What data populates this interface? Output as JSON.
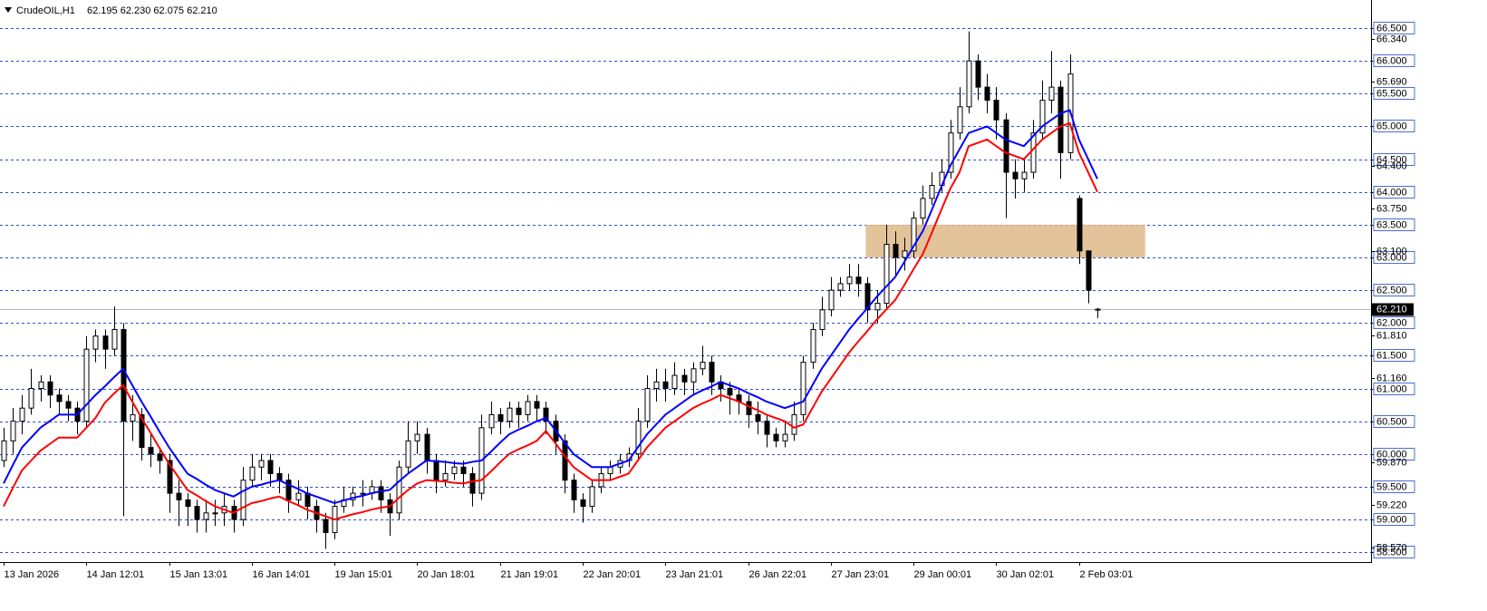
{
  "chart_data": {
    "type": "candlestick",
    "title": "CrudeOIL,H1",
    "quote": "62.195 62.230 62.075 62.210",
    "categories": [
      "13 Jan 2026",
      null,
      null,
      null,
      null,
      null,
      null,
      null,
      null,
      "14 Jan 12:01",
      null,
      null,
      null,
      null,
      null,
      null,
      null,
      null,
      "15 Jan 13:01",
      null,
      null,
      null,
      null,
      null,
      null,
      null,
      null,
      "16 Jan 14:01",
      null,
      null,
      null,
      null,
      null,
      null,
      null,
      null,
      "19 Jan 15:01",
      null,
      null,
      null,
      null,
      null,
      null,
      null,
      null,
      "20 Jan 18:01",
      null,
      null,
      null,
      null,
      null,
      null,
      null,
      null,
      "21 Jan 19:01",
      null,
      null,
      null,
      null,
      null,
      null,
      null,
      null,
      "22 Jan 20:01",
      null,
      null,
      null,
      null,
      null,
      null,
      null,
      null,
      "23 Jan 21:01",
      null,
      null,
      null,
      null,
      null,
      null,
      null,
      null,
      "26 Jan 22:01",
      null,
      null,
      null,
      null,
      null,
      null,
      null,
      null,
      "27 Jan 23:01",
      null,
      null,
      null,
      null,
      null,
      null,
      null,
      null,
      "29 Jan 00:01",
      null,
      null,
      null,
      null,
      null,
      null,
      null,
      null,
      "30 Jan 02:01",
      null,
      null,
      null,
      null,
      null,
      null,
      null,
      null,
      "2 Feb 03:01",
      null,
      null
    ],
    "open": [
      59.9,
      60.2,
      60.5,
      60.7,
      61.0,
      61.1,
      60.9,
      60.8,
      60.7,
      60.5,
      61.6,
      61.8,
      61.6,
      61.9,
      60.5,
      60.6,
      60.1,
      60.0,
      59.9,
      59.4,
      59.3,
      59.2,
      59.0,
      59.1,
      59.1,
      59.2,
      59.0,
      59.6,
      59.8,
      59.9,
      59.7,
      59.6,
      59.3,
      59.4,
      59.2,
      59.0,
      58.8,
      59.2,
      59.3,
      59.4,
      59.4,
      59.5,
      59.3,
      59.1,
      59.8,
      60.2,
      60.3,
      59.9,
      59.6,
      59.7,
      59.8,
      59.7,
      59.4,
      60.4,
      60.6,
      60.5,
      60.7,
      60.6,
      60.8,
      60.7,
      60.5,
      60.2,
      59.6,
      59.3,
      59.2,
      59.5,
      59.7,
      59.8,
      59.9,
      60.0,
      60.5,
      61.0,
      61.1,
      61.0,
      61.2,
      61.1,
      61.3,
      61.4,
      61.1,
      61.0,
      60.9,
      60.8,
      60.6,
      60.5,
      60.3,
      60.2,
      60.3,
      60.6,
      61.4,
      61.9,
      62.2,
      62.5,
      62.6,
      62.7,
      62.6,
      62.2,
      62.3,
      63.2,
      63.0,
      63.1,
      63.6,
      63.9,
      64.1,
      64.3,
      64.9,
      65.3,
      66.0,
      65.6,
      65.4,
      65.1,
      64.3,
      64.2,
      64.3,
      64.9,
      65.4,
      65.6,
      64.6,
      63.9,
      63.1,
      62.195
    ],
    "high": [
      60.4,
      60.7,
      60.9,
      61.3,
      61.2,
      61.2,
      61.0,
      60.9,
      60.8,
      61.8,
      61.9,
      61.9,
      62.25,
      62.0,
      60.9,
      60.7,
      60.3,
      60.1,
      60.0,
      59.6,
      59.4,
      59.3,
      59.3,
      59.3,
      59.4,
      59.3,
      59.8,
      60.0,
      60.0,
      60.0,
      59.8,
      59.7,
      59.6,
      59.5,
      59.3,
      59.1,
      59.3,
      59.5,
      59.5,
      59.6,
      59.6,
      59.6,
      59.4,
      59.9,
      60.5,
      60.5,
      60.4,
      60.0,
      59.9,
      59.9,
      59.9,
      59.8,
      60.6,
      60.8,
      60.7,
      60.8,
      60.8,
      60.9,
      60.9,
      60.8,
      60.6,
      60.3,
      59.7,
      59.4,
      59.6,
      59.8,
      59.9,
      60.0,
      60.1,
      60.7,
      61.2,
      61.3,
      61.3,
      61.4,
      61.3,
      61.4,
      61.65,
      61.5,
      61.2,
      61.1,
      61.0,
      60.9,
      60.8,
      60.6,
      60.4,
      60.5,
      60.8,
      61.5,
      62.0,
      62.4,
      62.7,
      62.7,
      62.9,
      62.9,
      62.7,
      62.5,
      63.5,
      63.4,
      63.3,
      63.7,
      64.1,
      64.3,
      64.5,
      65.1,
      65.6,
      66.45,
      66.1,
      65.8,
      65.6,
      65.2,
      64.5,
      64.5,
      65.1,
      65.7,
      66.15,
      65.7,
      66.1,
      63.95,
      63.1,
      62.23
    ],
    "low": [
      59.8,
      60.0,
      60.3,
      60.6,
      60.8,
      60.7,
      60.6,
      60.5,
      60.3,
      60.4,
      61.4,
      61.3,
      61.5,
      59.05,
      60.2,
      59.9,
      59.8,
      59.7,
      59.1,
      58.9,
      58.9,
      58.8,
      58.8,
      58.9,
      58.9,
      58.8,
      58.9,
      59.5,
      59.6,
      59.5,
      59.4,
      59.1,
      59.2,
      59.0,
      58.8,
      58.55,
      58.7,
      59.1,
      59.2,
      59.2,
      59.3,
      59.1,
      58.75,
      59.0,
      59.7,
      60.0,
      59.7,
      59.4,
      59.5,
      59.6,
      59.5,
      59.2,
      59.3,
      60.3,
      60.3,
      60.4,
      60.4,
      60.5,
      60.5,
      60.3,
      60.0,
      59.4,
      59.1,
      58.95,
      59.1,
      59.4,
      59.6,
      59.7,
      59.8,
      59.9,
      60.4,
      60.8,
      60.8,
      60.9,
      60.9,
      60.9,
      61.2,
      60.9,
      60.8,
      60.6,
      60.6,
      60.4,
      60.3,
      60.1,
      60.1,
      60.1,
      60.2,
      60.5,
      61.3,
      61.8,
      62.1,
      62.4,
      62.5,
      62.4,
      62.0,
      62.0,
      62.2,
      62.7,
      62.8,
      63.0,
      63.5,
      63.8,
      64.0,
      64.2,
      64.8,
      65.2,
      65.4,
      65.2,
      64.8,
      63.6,
      63.9,
      64.0,
      64.2,
      64.8,
      65.2,
      64.2,
      64.5,
      62.9,
      62.3,
      62.075
    ],
    "close": [
      60.2,
      60.5,
      60.7,
      61.0,
      61.1,
      60.9,
      60.8,
      60.7,
      60.5,
      61.6,
      61.8,
      61.6,
      61.9,
      60.5,
      60.6,
      60.1,
      60.0,
      59.9,
      59.4,
      59.3,
      59.2,
      59.0,
      59.1,
      59.1,
      59.2,
      59.0,
      59.6,
      59.8,
      59.9,
      59.7,
      59.6,
      59.3,
      59.4,
      59.2,
      59.0,
      58.8,
      59.2,
      59.3,
      59.4,
      59.4,
      59.5,
      59.3,
      59.1,
      59.8,
      60.2,
      60.3,
      59.9,
      59.6,
      59.7,
      59.8,
      59.7,
      59.4,
      60.4,
      60.6,
      60.5,
      60.7,
      60.6,
      60.8,
      60.7,
      60.5,
      60.2,
      59.6,
      59.3,
      59.2,
      59.5,
      59.7,
      59.8,
      59.9,
      60.0,
      60.5,
      61.0,
      61.1,
      61.0,
      61.2,
      61.1,
      61.3,
      61.4,
      61.1,
      61.0,
      60.9,
      60.8,
      60.6,
      60.5,
      60.3,
      60.2,
      60.3,
      60.6,
      61.4,
      61.9,
      62.2,
      62.5,
      62.6,
      62.7,
      62.6,
      62.2,
      62.3,
      63.2,
      63.0,
      63.1,
      63.6,
      63.9,
      64.1,
      64.3,
      64.9,
      65.3,
      66.0,
      65.6,
      65.4,
      65.1,
      64.3,
      64.2,
      64.3,
      64.9,
      65.4,
      65.6,
      64.6,
      65.8,
      63.1,
      62.5,
      62.21
    ],
    "lines": [
      {
        "color": "#0000ff",
        "values": [
          59.55,
          59.83,
          60.1,
          60.25,
          60.4,
          60.5,
          60.6,
          60.6,
          60.6,
          60.75,
          60.9,
          61.03,
          61.17,
          61.3,
          61.05,
          60.8,
          60.57,
          60.33,
          60.1,
          59.9,
          59.7,
          59.62,
          59.53,
          59.45,
          59.4,
          59.35,
          59.43,
          59.5,
          59.53,
          59.57,
          59.6,
          59.53,
          59.47,
          59.4,
          59.35,
          59.3,
          59.25,
          59.29,
          59.33,
          59.36,
          59.4,
          59.43,
          59.45,
          59.58,
          59.7,
          59.8,
          59.9,
          59.89,
          59.88,
          59.86,
          59.85,
          59.88,
          59.9,
          60.03,
          60.17,
          60.3,
          60.37,
          60.43,
          60.5,
          60.55,
          60.37,
          60.18,
          60.0,
          59.9,
          59.8,
          59.8,
          59.8,
          59.85,
          59.9,
          60.1,
          60.3,
          60.45,
          60.6,
          60.7,
          60.8,
          60.9,
          60.97,
          61.03,
          61.1,
          61.05,
          61.0,
          60.93,
          60.87,
          60.8,
          60.75,
          60.7,
          60.75,
          60.8,
          61.05,
          61.3,
          61.5,
          61.7,
          61.9,
          62.07,
          62.23,
          62.4,
          62.55,
          62.7,
          62.93,
          63.17,
          63.4,
          63.73,
          64.07,
          64.4,
          64.65,
          64.9,
          64.95,
          65.0,
          64.9,
          64.8,
          64.75,
          64.7,
          64.85,
          65.0,
          65.1,
          65.2,
          65.25,
          64.8,
          64.5,
          64.2
        ]
      },
      {
        "color": "#ff0000",
        "values": [
          59.2,
          59.48,
          59.75,
          59.9,
          60.05,
          60.15,
          60.25,
          60.25,
          60.25,
          60.4,
          60.55,
          60.78,
          60.92,
          61.05,
          60.8,
          60.55,
          60.32,
          60.08,
          59.85,
          59.65,
          59.45,
          59.37,
          59.28,
          59.2,
          59.15,
          59.1,
          59.18,
          59.25,
          59.28,
          59.32,
          59.35,
          59.28,
          59.22,
          59.15,
          59.1,
          59.05,
          59.0,
          59.04,
          59.08,
          59.11,
          59.15,
          59.18,
          59.2,
          59.33,
          59.45,
          59.55,
          59.6,
          59.59,
          59.58,
          59.56,
          59.55,
          59.58,
          59.6,
          59.73,
          59.87,
          60.0,
          60.07,
          60.13,
          60.2,
          60.35,
          60.17,
          59.98,
          59.8,
          59.7,
          59.6,
          59.6,
          59.6,
          59.65,
          59.7,
          59.9,
          60.1,
          60.25,
          60.4,
          60.5,
          60.6,
          60.7,
          60.77,
          60.83,
          60.9,
          60.85,
          60.8,
          60.73,
          60.67,
          60.6,
          60.55,
          60.5,
          60.4,
          60.45,
          60.7,
          60.95,
          61.15,
          61.35,
          61.55,
          61.72,
          61.88,
          62.05,
          62.2,
          62.35,
          62.58,
          62.82,
          63.05,
          63.38,
          63.72,
          64.05,
          64.3,
          64.7,
          64.75,
          64.8,
          64.7,
          64.6,
          64.55,
          64.5,
          64.65,
          64.8,
          64.9,
          65.0,
          65.05,
          64.6,
          64.3,
          64.0
        ]
      }
    ],
    "zone": {
      "low": 63.0,
      "high": 63.5,
      "from": 93.8,
      "to": 124.2,
      "color": "#deb887"
    },
    "ylim": [
      58.35,
      66.93
    ],
    "yticks": [
      {
        "value": 66.5,
        "label": "66.500"
      },
      {
        "value": 66.0,
        "label": "66.000"
      },
      {
        "value": 65.5,
        "label": "65.500"
      },
      {
        "value": 65.0,
        "label": "65.000"
      },
      {
        "value": 64.5,
        "label": "64.500"
      },
      {
        "value": 64.0,
        "label": "64.000"
      },
      {
        "value": 63.5,
        "label": "63.500"
      },
      {
        "value": 63.0,
        "label": "63.000"
      },
      {
        "value": 62.5,
        "label": "62.500"
      },
      {
        "value": 62.0,
        "label": "62.000"
      },
      {
        "value": 61.5,
        "label": "61.500"
      },
      {
        "value": 61.0,
        "label": "61.000"
      },
      {
        "value": 60.5,
        "label": "60.500"
      },
      {
        "value": 60.0,
        "label": "60.000"
      },
      {
        "value": 59.5,
        "label": "59.500"
      },
      {
        "value": 59.0,
        "label": "59.000"
      },
      {
        "value": 58.5,
        "label": "58.500"
      }
    ],
    "price_marks": [
      {
        "value": 66.34,
        "label": "66.340"
      },
      {
        "value": 65.69,
        "label": "65.690"
      },
      {
        "value": 64.4,
        "label": "64.400"
      },
      {
        "value": 63.75,
        "label": "63.750"
      },
      {
        "value": 63.1,
        "label": "63.100"
      },
      {
        "value": 61.81,
        "label": "61.810"
      },
      {
        "value": 61.16,
        "label": "61.160"
      },
      {
        "value": 59.87,
        "label": "59.870"
      },
      {
        "value": 59.22,
        "label": "59.220"
      },
      {
        "value": 58.57,
        "label": "58.570"
      }
    ],
    "last_price": {
      "value": 62.21,
      "label": "62.210"
    },
    "grid": true
  }
}
